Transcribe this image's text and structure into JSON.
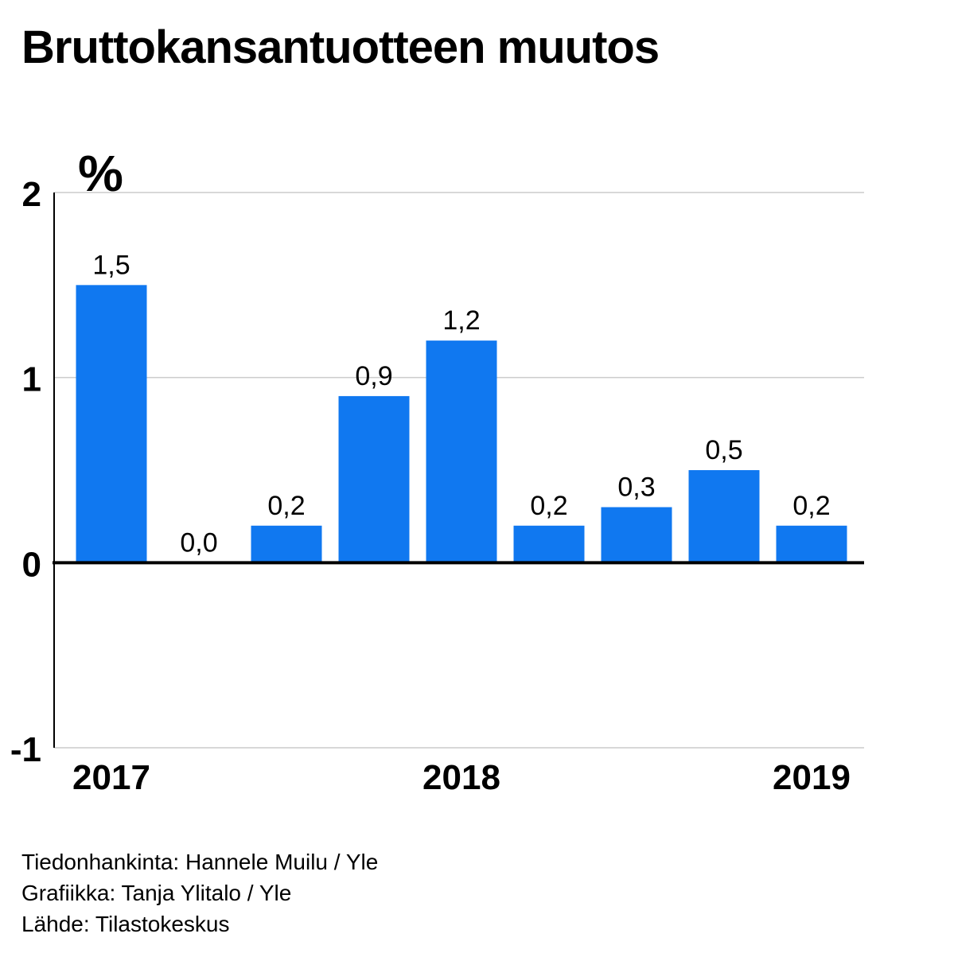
{
  "title": "Bruttokansantuotteen muutos",
  "colors": {
    "bar": "#1078f0",
    "grid": "#cccccc",
    "axis": "#000000",
    "zero_line": "#000000"
  },
  "chart_data": {
    "type": "bar",
    "title": "Bruttokansantuotteen muutos",
    "ylabel": "%",
    "ylim": [
      -1,
      2
    ],
    "yticks": [
      2,
      1,
      0,
      -1
    ],
    "ytick_labels": [
      "2",
      "1",
      "0",
      "-1"
    ],
    "grid": true,
    "values": [
      1.5,
      0.0,
      0.2,
      0.9,
      1.2,
      0.2,
      0.3,
      0.5,
      0.2
    ],
    "value_labels": [
      "1,5",
      "0,0",
      "0,2",
      "0,9",
      "1,2",
      "0,2",
      "0,3",
      "0,5",
      "0,2"
    ],
    "x_labels": [
      {
        "text": "2017",
        "index": 0
      },
      {
        "text": "2018",
        "index": 4
      },
      {
        "text": "2019",
        "index": 8
      }
    ]
  },
  "credits": {
    "data": "Tiedonhankinta: Hannele Muilu / Yle",
    "graphics": "Grafiikka: Tanja Ylitalo / Yle",
    "source": "Lähde: Tilastokeskus"
  }
}
